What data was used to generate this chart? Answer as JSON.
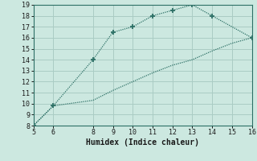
{
  "xlabel": "Humidex (Indice chaleur)",
  "xlim": [
    5,
    16
  ],
  "ylim": [
    8,
    19
  ],
  "xticks": [
    5,
    6,
    8,
    9,
    10,
    11,
    12,
    13,
    14,
    15,
    16
  ],
  "yticks": [
    8,
    9,
    10,
    11,
    12,
    13,
    14,
    15,
    16,
    17,
    18,
    19
  ],
  "upper_curve_x": [
    5,
    6,
    8,
    9,
    10,
    11,
    12,
    13,
    14,
    16
  ],
  "upper_curve_y": [
    8,
    9.8,
    14,
    16.5,
    17,
    18,
    18.5,
    19,
    18,
    16
  ],
  "lower_curve_x": [
    5,
    6,
    8,
    9,
    10,
    11,
    12,
    13,
    14,
    15,
    16
  ],
  "lower_curve_y": [
    8,
    9.8,
    10.3,
    11.2,
    12.0,
    12.8,
    13.5,
    14.0,
    14.8,
    15.5,
    16
  ],
  "line_color": "#2d7066",
  "bg_color": "#cce8e0",
  "grid_color": "#aaccc4",
  "marker_upper": "+",
  "marker_lower": null
}
